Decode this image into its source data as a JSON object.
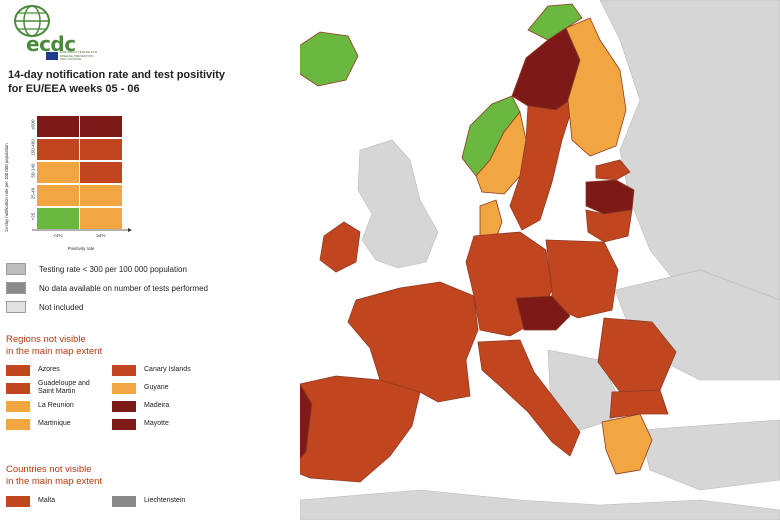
{
  "colors": {
    "sea": "#ffffff",
    "land_other": "#d6d6d6",
    "not_included": "#e2e2e2",
    "low_testing": "#bdbdbd",
    "no_data": "#8a8a8a",
    "green": "#6ab83f",
    "orange": "#f2a641",
    "red": "#c1461f",
    "dark_red": "#7d1a18",
    "border": "#8f3a24"
  },
  "logo": {
    "text": "ecdc",
    "subtitle": "EUROPEAN CENTRE FOR DISEASE PREVENTION AND CONTROL"
  },
  "title": {
    "line1": "14-day notification rate and test positivity",
    "line2": "for EU/EEA weeks 05 - 06"
  },
  "grid": {
    "y_axis_title": "14-day notification rate per 100 000 population",
    "y_ticks": [
      "≥500",
      "150-499",
      "50-149",
      "25-49",
      "<25"
    ],
    "x_ticks": [
      "<4%",
      "≥4%"
    ],
    "x_axis_title": "Positivity rate",
    "cells": [
      [
        "dark_red",
        "dark_red"
      ],
      [
        "red",
        "red"
      ],
      [
        "orange",
        "red"
      ],
      [
        "orange",
        "orange"
      ],
      [
        "green",
        "orange"
      ]
    ]
  },
  "key": [
    {
      "label": "Testing rate < 300 per 100 000 population",
      "color": "low_testing"
    },
    {
      "label": "No data available on number of tests performed",
      "color": "no_data"
    },
    {
      "label": "Not included",
      "color": "not_included"
    }
  ],
  "regions_title": {
    "line1": "Regions not visible",
    "line2": "in the main map extent"
  },
  "regions": [
    {
      "label": "Azores",
      "color": "red"
    },
    {
      "label": "Guadeloupe and Saint Martin",
      "color": "red"
    },
    {
      "label": "La Reunion",
      "color": "orange"
    },
    {
      "label": "Martinique",
      "color": "orange"
    },
    {
      "label": "Canary Islands",
      "color": "red"
    },
    {
      "label": "Guyane",
      "color": "orange"
    },
    {
      "label": "Madeira",
      "color": "dark_red"
    },
    {
      "label": "Mayotte",
      "color": "dark_red"
    }
  ],
  "countries_title": {
    "line1": "Countries not visible",
    "line2": "in the main map extent"
  },
  "countries": [
    {
      "label": "Malta",
      "color": "red"
    },
    {
      "label": "Liechtenstein",
      "color": "no_data"
    }
  ],
  "map": {
    "regions": [
      {
        "name": "Iceland",
        "status": "green"
      },
      {
        "name": "Norway (north)",
        "status": "green"
      },
      {
        "name": "Norway (south-west)",
        "status": "green"
      },
      {
        "name": "Norway (south)",
        "status": "orange"
      },
      {
        "name": "Sweden (north)",
        "status": "dark_red"
      },
      {
        "name": "Sweden (middle)",
        "status": "red"
      },
      {
        "name": "Finland",
        "status": "orange"
      },
      {
        "name": "Estonia",
        "status": "red"
      },
      {
        "name": "Latvia",
        "status": "dark_red"
      },
      {
        "name": "Lithuania",
        "status": "red"
      },
      {
        "name": "Denmark",
        "status": "orange"
      },
      {
        "name": "Ireland",
        "status": "red"
      },
      {
        "name": "Portugal",
        "status": "dark_red"
      },
      {
        "name": "Spain",
        "status": "red"
      },
      {
        "name": "France",
        "status": "red"
      },
      {
        "name": "Germany",
        "status": "red"
      },
      {
        "name": "Poland",
        "status": "red"
      },
      {
        "name": "Czechia",
        "status": "dark_red"
      },
      {
        "name": "Italy",
        "status": "red"
      },
      {
        "name": "Romania",
        "status": "red"
      },
      {
        "name": "Greece",
        "status": "orange"
      },
      {
        "name": "Bulgaria",
        "status": "red"
      }
    ]
  }
}
